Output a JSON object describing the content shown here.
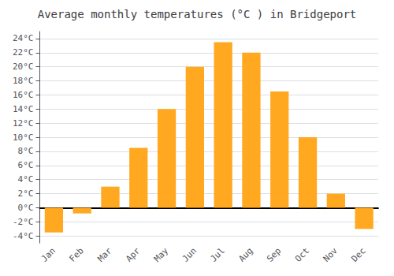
{
  "chart_data": {
    "type": "bar",
    "title": "Average monthly temperatures (°C ) in Bridgeport",
    "categories": [
      "Jan",
      "Feb",
      "Mar",
      "Apr",
      "May",
      "Jun",
      "Jul",
      "Aug",
      "Sep",
      "Oct",
      "Nov",
      "Dec"
    ],
    "values": [
      -3.5,
      -0.8,
      3.0,
      8.5,
      14.0,
      20.0,
      23.5,
      22.0,
      16.5,
      10.0,
      2.0,
      -3.0
    ],
    "color": "#FFA820",
    "ylim": [
      -5,
      25
    ],
    "yticks": [
      {
        "value": -4,
        "label": "-4°C"
      },
      {
        "value": -2,
        "label": "-2°C"
      },
      {
        "value": 0,
        "label": "0°C"
      },
      {
        "value": 2,
        "label": "2°C"
      },
      {
        "value": 4,
        "label": "4°C"
      },
      {
        "value": 6,
        "label": "6°C"
      },
      {
        "value": 8,
        "label": "8°C"
      },
      {
        "value": 10,
        "label": "10°C"
      },
      {
        "value": 12,
        "label": "12°C"
      },
      {
        "value": 14,
        "label": "14°C"
      },
      {
        "value": 16,
        "label": "16°C"
      },
      {
        "value": 18,
        "label": "18°C"
      },
      {
        "value": 20,
        "label": "20°C"
      },
      {
        "value": 22,
        "label": "22°C"
      },
      {
        "value": 24,
        "label": "24°C"
      }
    ],
    "grid": true
  }
}
